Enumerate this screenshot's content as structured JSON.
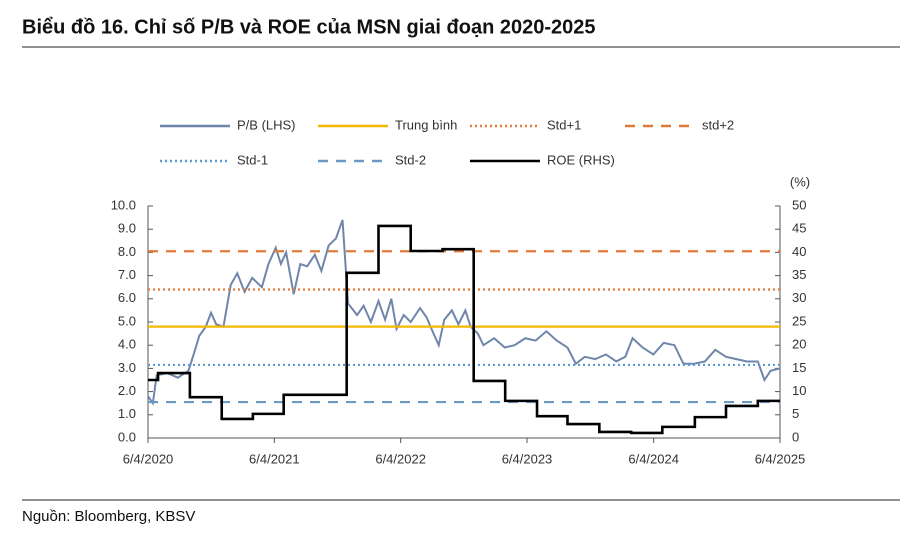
{
  "title": "Biểu đồ 16. Chỉ số P/B và ROE của MSN giai đoạn 2020-2025",
  "source": "Nguồn: Bloomberg, KBSV",
  "chart_data": {
    "type": "line",
    "y2_label": "(%)",
    "xlim": [
      "2020-04-06",
      "2025-04-06"
    ],
    "xticks": [
      {
        "value": "2020-04-06",
        "label": "6/4/2020"
      },
      {
        "value": "2021-04-06",
        "label": "6/4/2021"
      },
      {
        "value": "2022-04-06",
        "label": "6/4/2022"
      },
      {
        "value": "2023-04-06",
        "label": "6/4/2023"
      },
      {
        "value": "2024-04-06",
        "label": "6/4/2024"
      },
      {
        "value": "2025-04-06",
        "label": "6/4/2025"
      }
    ],
    "ylim": [
      0,
      10
    ],
    "yticks": [
      {
        "value": 0,
        "label": "0.0"
      },
      {
        "value": 1,
        "label": "1.0"
      },
      {
        "value": 2,
        "label": "2.0"
      },
      {
        "value": 3,
        "label": "3.0"
      },
      {
        "value": 4,
        "label": "4.0"
      },
      {
        "value": 5,
        "label": "5.0"
      },
      {
        "value": 6,
        "label": "6.0"
      },
      {
        "value": 7,
        "label": "7.0"
      },
      {
        "value": 8,
        "label": "8.0"
      },
      {
        "value": 9,
        "label": "9.0"
      },
      {
        "value": 10,
        "label": "10.0"
      }
    ],
    "y2lim": [
      0,
      50
    ],
    "y2ticks": [
      0,
      5,
      10,
      15,
      20,
      25,
      30,
      35,
      40,
      45,
      50
    ],
    "series": [
      {
        "name": "P/B (LHS)",
        "color": "#6f86aa",
        "style": "solid",
        "x": [
          "2020-04-06",
          "2020-04-20",
          "2020-05-01",
          "2020-06-01",
          "2020-07-01",
          "2020-08-01",
          "2020-08-20",
          "2020-09-01",
          "2020-09-20",
          "2020-10-05",
          "2020-10-20",
          "2020-11-10",
          "2020-12-01",
          "2020-12-20",
          "2021-01-10",
          "2021-02-01",
          "2021-03-01",
          "2021-03-20",
          "2021-04-10",
          "2021-04-25",
          "2021-05-10",
          "2021-06-01",
          "2021-06-20",
          "2021-07-10",
          "2021-08-01",
          "2021-08-20",
          "2021-09-10",
          "2021-10-01",
          "2021-10-20",
          "2021-11-05",
          "2021-12-01",
          "2021-12-20",
          "2022-01-10",
          "2022-02-01",
          "2022-02-20",
          "2022-03-10",
          "2022-03-25",
          "2022-04-15",
          "2022-05-05",
          "2022-06-01",
          "2022-06-20",
          "2022-07-10",
          "2022-07-25",
          "2022-08-10",
          "2022-09-01",
          "2022-09-20",
          "2022-10-10",
          "2022-10-25",
          "2022-11-15",
          "2022-12-01",
          "2023-01-01",
          "2023-02-01",
          "2023-03-01",
          "2023-04-01",
          "2023-05-01",
          "2023-06-01",
          "2023-07-01",
          "2023-08-01",
          "2023-08-25",
          "2023-09-20",
          "2023-10-20",
          "2023-11-20",
          "2023-12-20",
          "2024-01-15",
          "2024-02-05",
          "2024-03-05",
          "2024-04-05",
          "2024-05-05",
          "2024-06-05",
          "2024-07-01",
          "2024-08-01",
          "2024-09-01",
          "2024-10-01",
          "2024-11-01",
          "2024-12-01",
          "2025-01-01",
          "2025-02-01",
          "2025-02-20",
          "2025-03-10",
          "2025-04-06"
        ],
        "values": [
          1.8,
          1.5,
          2.7,
          2.8,
          2.6,
          2.9,
          3.8,
          4.4,
          4.8,
          5.4,
          4.9,
          4.8,
          6.6,
          7.1,
          6.3,
          6.9,
          6.5,
          7.5,
          8.2,
          7.5,
          8.0,
          6.2,
          7.5,
          7.4,
          7.9,
          7.2,
          8.3,
          8.6,
          9.4,
          5.8,
          5.3,
          5.7,
          5.0,
          5.9,
          5.1,
          6.0,
          4.7,
          5.3,
          5.0,
          5.6,
          5.2,
          4.5,
          4.0,
          5.1,
          5.5,
          4.9,
          5.5,
          4.8,
          4.5,
          4.0,
          4.3,
          3.9,
          4.0,
          4.3,
          4.2,
          4.6,
          4.2,
          3.9,
          3.2,
          3.5,
          3.4,
          3.6,
          3.3,
          3.5,
          4.3,
          3.9,
          3.6,
          4.1,
          4.0,
          3.2,
          3.2,
          3.3,
          3.8,
          3.5,
          3.4,
          3.3,
          3.3,
          2.5,
          2.9,
          3.0
        ]
      },
      {
        "name": "Trung bình",
        "color": "#f5b800",
        "style": "solid",
        "value": 4.8
      },
      {
        "name": "Std+1",
        "color": "#e07b39",
        "style": "dotted",
        "value": 6.4
      },
      {
        "name": "std+2",
        "color": "#e07b39",
        "style": "dashed",
        "value": 8.05
      },
      {
        "name": "Std-1",
        "color": "#5b9bd5",
        "style": "dotted",
        "value": 3.15
      },
      {
        "name": "Std-2",
        "color": "#6a9ac4",
        "style": "dashed",
        "value": 1.55
      },
      {
        "name": "ROE (RHS)",
        "color": "#000000",
        "style": "step",
        "axis": "y2",
        "x": [
          "2020-04-06",
          "2020-05-05",
          "2020-08-05",
          "2020-11-05",
          "2021-02-03",
          "2021-05-03",
          "2021-11-01",
          "2022-02-01",
          "2022-05-05",
          "2022-08-05",
          "2022-11-03",
          "2023-02-02",
          "2023-05-05",
          "2023-08-01",
          "2023-11-01",
          "2024-02-01",
          "2024-05-01",
          "2024-08-03",
          "2024-11-01",
          "2025-02-01",
          "2025-04-06"
        ],
        "values": [
          12.5,
          14,
          8.8,
          4.1,
          5.2,
          9.3,
          35.6,
          45.7,
          40.3,
          40.7,
          12.3,
          8,
          4.7,
          3,
          1.3,
          1.1,
          2.4,
          4.5,
          6.9,
          8,
          8
        ]
      }
    ]
  }
}
